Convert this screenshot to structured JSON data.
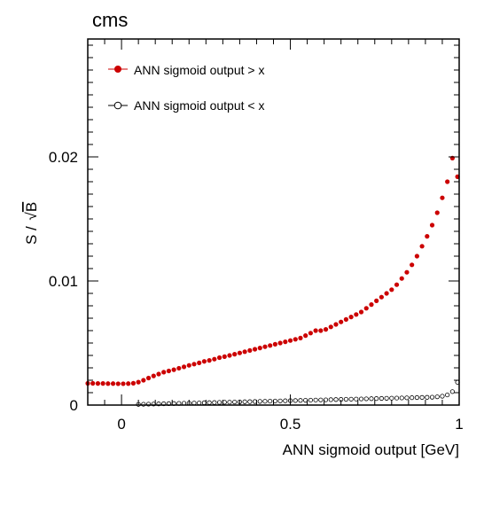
{
  "chart_data": {
    "type": "scatter",
    "title": "cms",
    "xlabel": "ANN sigmoid output [GeV]",
    "ylabel_prefix": "S / ",
    "ylabel_radicand": "B",
    "xlim": [
      -0.1,
      1.0
    ],
    "ylim": [
      0,
      0.0295
    ],
    "xticks": [
      {
        "value": 0,
        "label": "0"
      },
      {
        "value": 0.5,
        "label": "0.5"
      },
      {
        "value": 1,
        "label": "1"
      }
    ],
    "yticks": [
      {
        "value": 0,
        "label": "0"
      },
      {
        "value": 0.01,
        "label": "0.01"
      },
      {
        "value": 0.02,
        "label": "0.02"
      }
    ],
    "legend_position": "top-left",
    "colors": {
      "greater": "#cc0000",
      "less": "#000000"
    },
    "series": [
      {
        "name": "ANN sigmoid output > x",
        "marker": "filled-circle",
        "x": [
          -0.1,
          -0.085,
          -0.07,
          -0.055,
          -0.04,
          -0.025,
          -0.01,
          0.005,
          0.02,
          0.035,
          0.05,
          0.065,
          0.08,
          0.095,
          0.11,
          0.125,
          0.14,
          0.155,
          0.17,
          0.185,
          0.2,
          0.215,
          0.23,
          0.245,
          0.26,
          0.275,
          0.29,
          0.305,
          0.32,
          0.335,
          0.35,
          0.365,
          0.38,
          0.395,
          0.41,
          0.425,
          0.44,
          0.455,
          0.47,
          0.485,
          0.5,
          0.515,
          0.53,
          0.545,
          0.56,
          0.575,
          0.59,
          0.605,
          0.62,
          0.635,
          0.65,
          0.665,
          0.68,
          0.695,
          0.71,
          0.725,
          0.74,
          0.755,
          0.77,
          0.785,
          0.8,
          0.815,
          0.83,
          0.845,
          0.86,
          0.875,
          0.89,
          0.905,
          0.92,
          0.935,
          0.95,
          0.965,
          0.98,
          0.995
        ],
        "y": [
          0.00175,
          0.00175,
          0.00174,
          0.00174,
          0.00173,
          0.00173,
          0.00172,
          0.00172,
          0.00173,
          0.00176,
          0.00185,
          0.002,
          0.00218,
          0.00235,
          0.0025,
          0.00265,
          0.00275,
          0.00285,
          0.00297,
          0.00308,
          0.0032,
          0.0033,
          0.0034,
          0.00352,
          0.0036,
          0.0037,
          0.00382,
          0.0039,
          0.004,
          0.0041,
          0.0042,
          0.0043,
          0.0044,
          0.0045,
          0.0046,
          0.0047,
          0.0048,
          0.0049,
          0.005,
          0.0051,
          0.0052,
          0.0053,
          0.0054,
          0.0056,
          0.0058,
          0.006,
          0.006,
          0.0061,
          0.0063,
          0.0065,
          0.0067,
          0.0069,
          0.0071,
          0.0073,
          0.0075,
          0.0078,
          0.0081,
          0.0084,
          0.0087,
          0.009,
          0.0093,
          0.0097,
          0.0102,
          0.0107,
          0.0113,
          0.012,
          0.0128,
          0.0136,
          0.0145,
          0.0155,
          0.0167,
          0.018,
          0.0199,
          0.0184
        ]
      },
      {
        "name": "ANN sigmoid output < x",
        "marker": "open-circle",
        "x": [
          0.05,
          0.065,
          0.08,
          0.095,
          0.11,
          0.125,
          0.14,
          0.155,
          0.17,
          0.185,
          0.2,
          0.215,
          0.23,
          0.245,
          0.26,
          0.275,
          0.29,
          0.305,
          0.32,
          0.335,
          0.35,
          0.365,
          0.38,
          0.395,
          0.41,
          0.425,
          0.44,
          0.455,
          0.47,
          0.485,
          0.5,
          0.515,
          0.53,
          0.545,
          0.56,
          0.575,
          0.59,
          0.605,
          0.62,
          0.635,
          0.65,
          0.665,
          0.68,
          0.695,
          0.71,
          0.725,
          0.74,
          0.755,
          0.77,
          0.785,
          0.8,
          0.815,
          0.83,
          0.845,
          0.86,
          0.875,
          0.89,
          0.905,
          0.92,
          0.935,
          0.95,
          0.965,
          0.98,
          0.995
        ],
        "y": [
          2e-05,
          3e-05,
          4e-05,
          5e-05,
          6e-05,
          7e-05,
          8e-05,
          9e-05,
          0.0001,
          0.00011,
          0.00012,
          0.00013,
          0.00014,
          0.00015,
          0.00016,
          0.00017,
          0.00018,
          0.00019,
          0.0002,
          0.00021,
          0.00022,
          0.00023,
          0.00024,
          0.00025,
          0.00026,
          0.00027,
          0.00028,
          0.00029,
          0.0003,
          0.00031,
          0.00032,
          0.00033,
          0.00034,
          0.00035,
          0.00036,
          0.00037,
          0.00038,
          0.00039,
          0.0004,
          0.00041,
          0.00042,
          0.00043,
          0.00044,
          0.00045,
          0.00046,
          0.00047,
          0.00048,
          0.00049,
          0.0005,
          0.00051,
          0.00052,
          0.00053,
          0.00054,
          0.00055,
          0.00056,
          0.00057,
          0.00058,
          0.00059,
          0.0006,
          0.00063,
          0.00068,
          0.00078,
          0.00105,
          0.0018
        ]
      }
    ]
  }
}
